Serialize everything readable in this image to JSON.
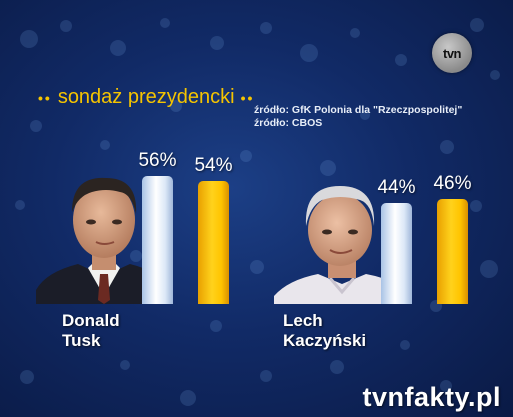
{
  "title": "sondaż prezydencki",
  "sources": [
    "źródło: GfK Polonia dla \"Rzeczpospolitej\"",
    "źródło: CBOS"
  ],
  "logo_text": "tvn",
  "brand": "tvnfakty.pl",
  "colors": {
    "accent": "#f5c400",
    "series_a": "#ffffff",
    "series_b": "#ffc400",
    "background": "#112a66"
  },
  "chart_data": {
    "type": "bar",
    "title": "sondaż prezydencki",
    "categories": [
      "Donald Tusk",
      "Lech Kaczyński"
    ],
    "category_lines": [
      [
        "Donald",
        "Tusk"
      ],
      [
        "Lech",
        "Kaczyński"
      ]
    ],
    "series": [
      {
        "values": [
          56,
          44
        ],
        "labels": [
          "56%",
          "44%"
        ],
        "color": "#ffffff"
      },
      {
        "values": [
          54,
          46
        ],
        "labels": [
          "54%",
          "46%"
        ],
        "color": "#ffc400"
      }
    ],
    "ylim": [
      0,
      100
    ],
    "grid": false,
    "xlabel": "",
    "ylabel": ""
  }
}
